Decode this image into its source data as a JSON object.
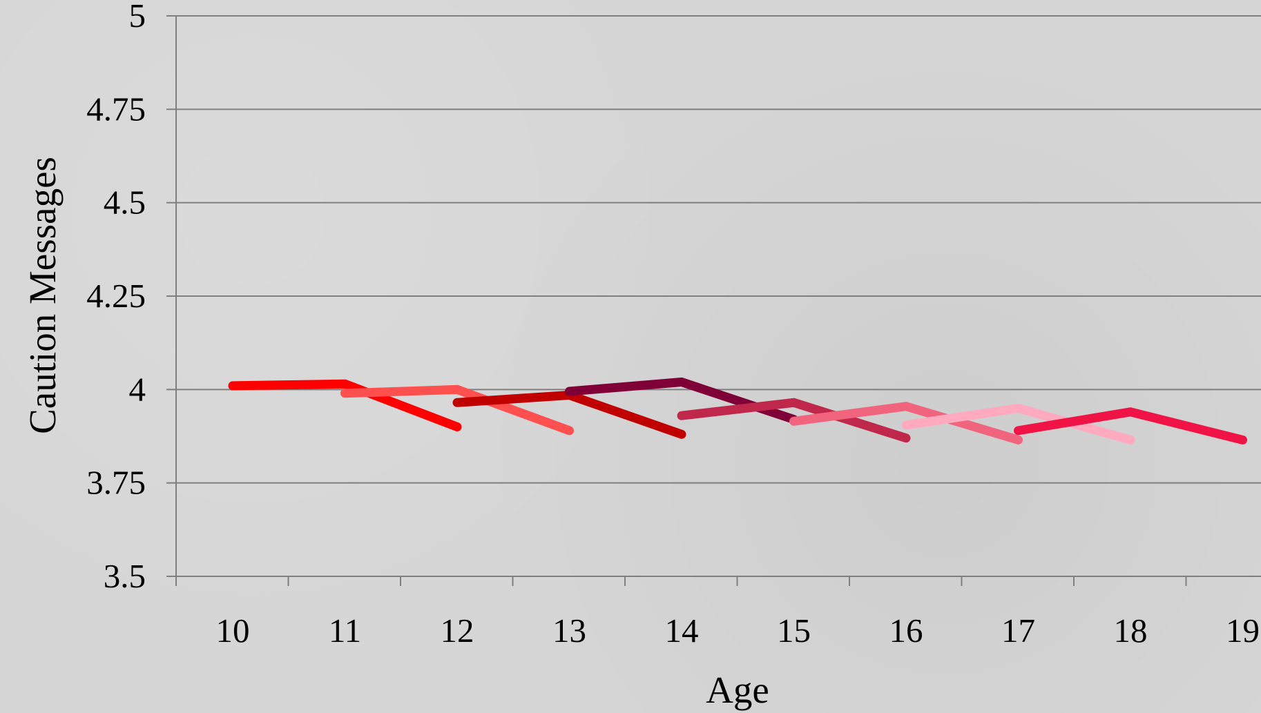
{
  "chart_data": {
    "type": "line",
    "xlabel": "Age",
    "ylabel": "Caution Messages",
    "ylim": [
      3.5,
      5
    ],
    "yticks": [
      "3.5",
      "3.75",
      "4",
      "4.25",
      "4.5",
      "4.75",
      "5"
    ],
    "xticks": [
      "10",
      "11",
      "12",
      "13",
      "14",
      "15",
      "16",
      "17",
      "18",
      "19"
    ],
    "grid": true,
    "series": [
      {
        "color": "#ff0000",
        "points": [
          {
            "x": 10,
            "y": 4.01
          },
          {
            "x": 11,
            "y": 4.015
          },
          {
            "x": 12,
            "y": 3.9
          }
        ]
      },
      {
        "color": "#ff5050",
        "points": [
          {
            "x": 11,
            "y": 3.99
          },
          {
            "x": 12,
            "y": 4.0
          },
          {
            "x": 13,
            "y": 3.89
          }
        ]
      },
      {
        "color": "#c00000",
        "points": [
          {
            "x": 12,
            "y": 3.965
          },
          {
            "x": 13,
            "y": 3.985
          },
          {
            "x": 14,
            "y": 3.88
          }
        ]
      },
      {
        "color": "#7f0037",
        "points": [
          {
            "x": 13,
            "y": 3.995
          },
          {
            "x": 14,
            "y": 4.02
          },
          {
            "x": 15,
            "y": 3.92
          }
        ]
      },
      {
        "color": "#c0284b",
        "points": [
          {
            "x": 14,
            "y": 3.93
          },
          {
            "x": 15,
            "y": 3.965
          },
          {
            "x": 16,
            "y": 3.87
          }
        ]
      },
      {
        "color": "#f0647d",
        "points": [
          {
            "x": 15,
            "y": 3.915
          },
          {
            "x": 16,
            "y": 3.955
          },
          {
            "x": 17,
            "y": 3.865
          }
        ]
      },
      {
        "color": "#ffaabe",
        "points": [
          {
            "x": 16,
            "y": 3.905
          },
          {
            "x": 17,
            "y": 3.95
          },
          {
            "x": 18,
            "y": 3.865
          }
        ]
      },
      {
        "color": "#f01446",
        "points": [
          {
            "x": 17,
            "y": 3.89
          },
          {
            "x": 18,
            "y": 3.94
          },
          {
            "x": 19,
            "y": 3.865
          }
        ]
      }
    ]
  }
}
